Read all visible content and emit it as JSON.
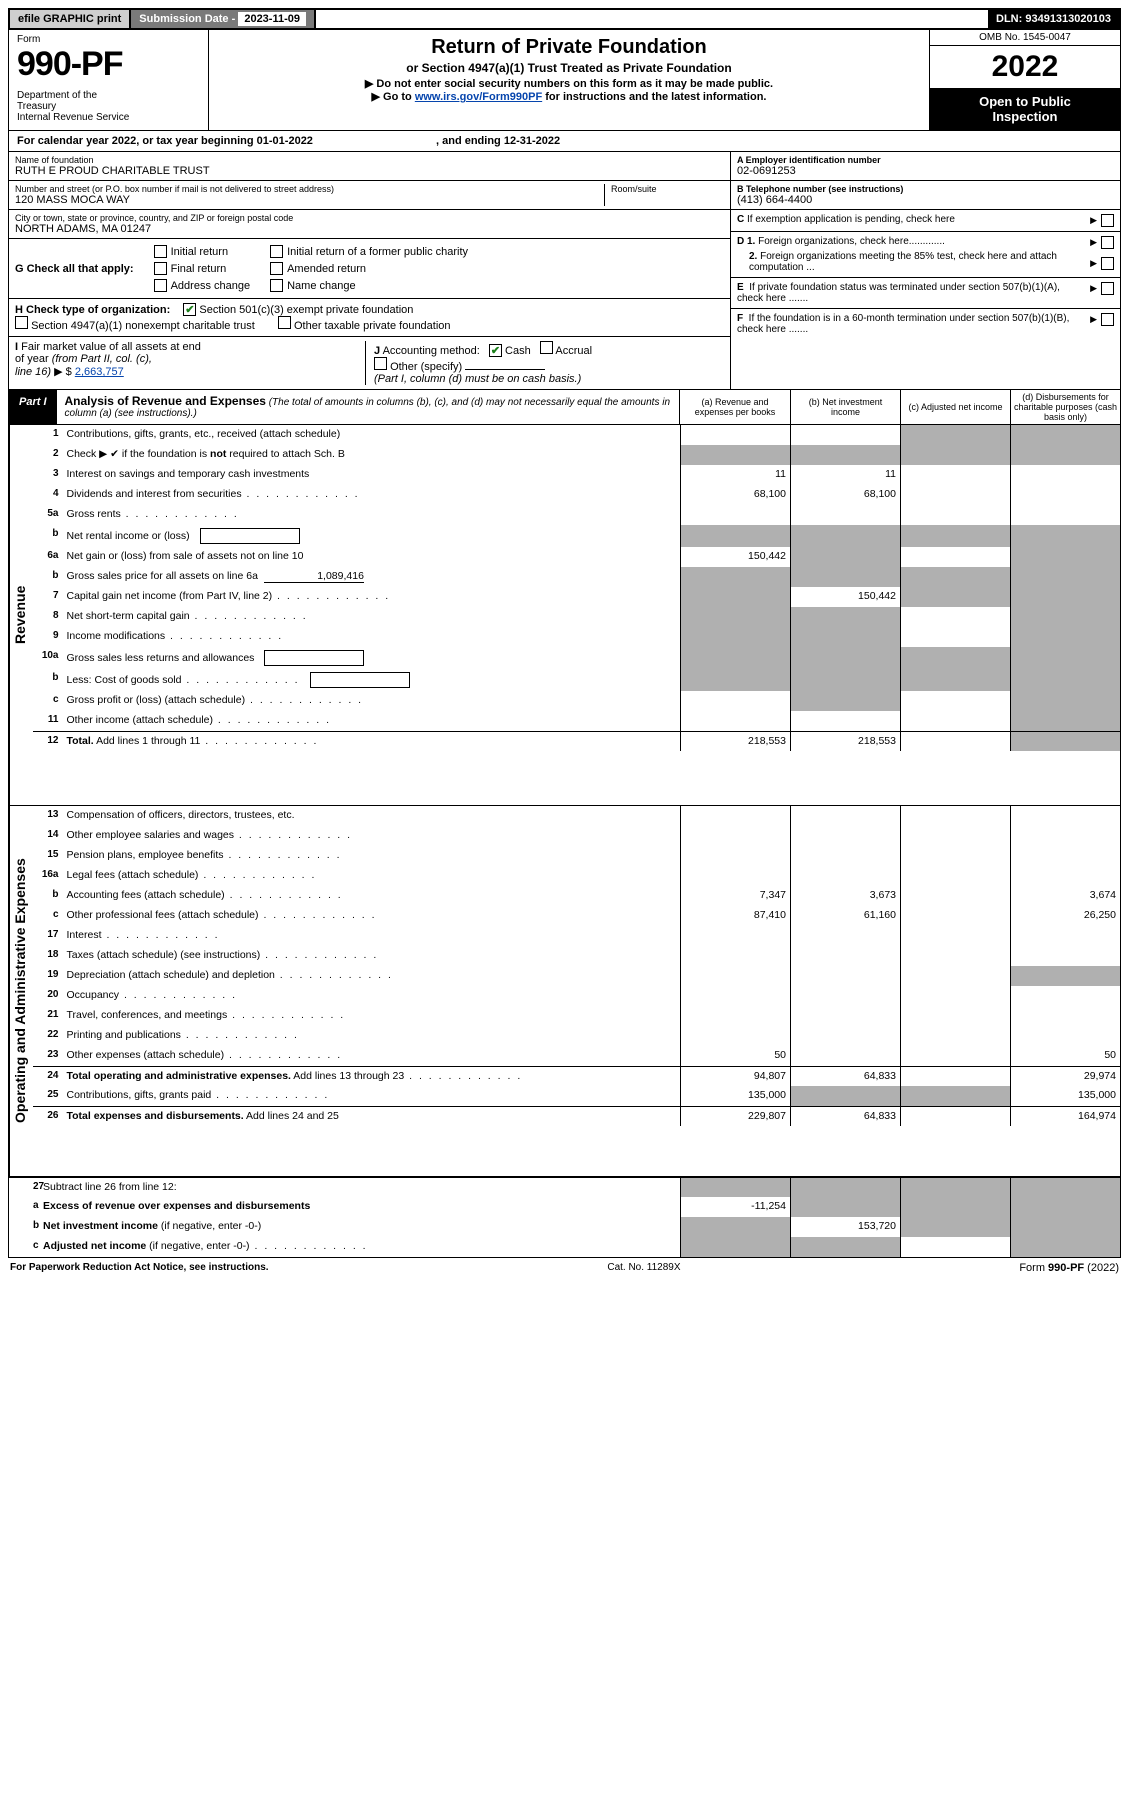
{
  "top": {
    "efile": "efile GRAPHIC print",
    "sub_label": "Submission Date - ",
    "sub_date": "2023-11-09",
    "dln_label": "DLN: ",
    "dln": "93491313020103"
  },
  "header": {
    "form_label": "Form",
    "form_num": "990-PF",
    "dept": "Department of the Treasury\nInternal Revenue Service",
    "title": "Return of Private Foundation",
    "subtitle": "or Section 4947(a)(1) Trust Treated as Private Foundation",
    "note1": "▶ Do not enter social security numbers on this form as it may be made public.",
    "note2_pre": "▶ Go to ",
    "note2_link": "www.irs.gov/Form990PF",
    "note2_post": " for instructions and the latest information.",
    "omb": "OMB No. 1545-0047",
    "year": "2022",
    "open": "Open to Public Inspection"
  },
  "cal_year": {
    "label_a": "For calendar year 2022, or tax year beginning ",
    "begin": "01-01-2022",
    "label_b": ", and ending ",
    "end": "12-31-2022"
  },
  "entity": {
    "name_lbl": "Name of foundation",
    "name": "RUTH E PROUD CHARITABLE TRUST",
    "addr_lbl": "Number and street (or P.O. box number if mail is not delivered to street address)",
    "addr": "120 MASS MOCA WAY",
    "room_lbl": "Room/suite",
    "city_lbl": "City or town, state or province, country, and ZIP or foreign postal code",
    "city": "NORTH ADAMS, MA  01247",
    "ein_lbl": "A Employer identification number",
    "ein": "02-0691253",
    "phone_lbl": "B Telephone number (see instructions)",
    "phone": "(413) 664-4400",
    "c_lbl": "C If exemption application is pending, check here",
    "d1": "D 1. Foreign organizations, check here.............",
    "d2": "2. Foreign organizations meeting the 85% test, check here and attach computation ...",
    "e": "E  If private foundation status was terminated under section 507(b)(1)(A), check here .......",
    "f": "F  If the foundation is in a 60-month termination under section 507(b)(1)(B), check here ......."
  },
  "g": {
    "label": "G Check all that apply:",
    "opts": [
      "Initial return",
      "Final return",
      "Address change",
      "Initial return of a former public charity",
      "Amended return",
      "Name change"
    ]
  },
  "h": {
    "label": "H Check type of organization:",
    "opt1": "Section 501(c)(3) exempt private foundation",
    "opt2": "Section 4947(a)(1) nonexempt charitable trust",
    "opt3": "Other taxable private foundation"
  },
  "ij": {
    "i_label": "I Fair market value of all assets at end of year (from Part II, col. (c), line 16) ▶ $",
    "i_val": "2,663,757",
    "j_label": "J Accounting method:",
    "j_cash": "Cash",
    "j_accrual": "Accrual",
    "j_other": "Other (specify)",
    "j_note": "(Part I, column (d) must be on cash basis.)"
  },
  "part1": {
    "tag": "Part I",
    "title": "Analysis of Revenue and Expenses",
    "note": " (The total of amounts in columns (b), (c), and (d) may not necessarily equal the amounts in column (a) (see instructions).)",
    "cols": {
      "a": "(a)   Revenue and expenses per books",
      "b": "(b)   Net investment income",
      "c": "(c)   Adjusted net income",
      "d": "(d)   Disbursements for charitable purposes (cash basis only)"
    }
  },
  "rev_label": "Revenue",
  "exp_label": "Operating and Administrative Expenses",
  "lines": [
    {
      "n": "1",
      "d": "Contributions, gifts, grants, etc., received (attach schedule)",
      "a": "",
      "b": "",
      "c_sh": true,
      "d_sh": true
    },
    {
      "n": "2",
      "d": "Check ▶ ✔ if the foundation is <b>not</b> required to attach Sch. B",
      "row_only": true
    },
    {
      "n": "3",
      "d": "Interest on savings and temporary cash investments",
      "a": "11",
      "b": "11"
    },
    {
      "n": "4",
      "d": "Dividends and interest from securities",
      "a": "68,100",
      "b": "68,100",
      "dots": true
    },
    {
      "n": "5a",
      "d": "Gross rents",
      "dots": true
    },
    {
      "n": "b",
      "d": "Net rental income or (loss)",
      "sub_box": true,
      "a_sh": true,
      "b_sh": true,
      "c_sh": true,
      "d_sh": true
    },
    {
      "n": "6a",
      "d": "Net gain or (loss) from sale of assets not on line 10",
      "a": "150,442",
      "b_sh": true,
      "d_sh": true
    },
    {
      "n": "b",
      "d": "Gross sales price for all assets on line 6a",
      "sub_val": "1,089,416",
      "a_sh": true,
      "b_sh": true,
      "c_sh": true,
      "d_sh": true
    },
    {
      "n": "7",
      "d": "Capital gain net income (from Part IV, line 2)",
      "a_sh": true,
      "b": "150,442",
      "c_sh": true,
      "d_sh": true,
      "dots": true
    },
    {
      "n": "8",
      "d": "Net short-term capital gain",
      "a_sh": true,
      "b_sh": true,
      "d_sh": true,
      "dots": true
    },
    {
      "n": "9",
      "d": "Income modifications",
      "a_sh": true,
      "b_sh": true,
      "d_sh": true,
      "dots": true
    },
    {
      "n": "10a",
      "d": "Gross sales less returns and allowances",
      "sub_box": true,
      "a_sh": true,
      "b_sh": true,
      "c_sh": true,
      "d_sh": true
    },
    {
      "n": "b",
      "d": "Less: Cost of goods sold",
      "sub_box": true,
      "a_sh": true,
      "b_sh": true,
      "c_sh": true,
      "d_sh": true,
      "dots": true
    },
    {
      "n": "c",
      "d": "Gross profit or (loss) (attach schedule)",
      "b_sh": true,
      "d_sh": true,
      "dots": true
    },
    {
      "n": "11",
      "d": "Other income (attach schedule)",
      "d_sh": true,
      "dots": true
    },
    {
      "n": "12",
      "d": "<b>Total.</b> Add lines 1 through 11",
      "a": "218,553",
      "b": "218,553",
      "d_sh": true,
      "dots": true,
      "hr": true
    }
  ],
  "exp_lines": [
    {
      "n": "13",
      "d": "Compensation of officers, directors, trustees, etc."
    },
    {
      "n": "14",
      "d": "Other employee salaries and wages",
      "dots": true
    },
    {
      "n": "15",
      "d": "Pension plans, employee benefits",
      "dots": true
    },
    {
      "n": "16a",
      "d": "Legal fees (attach schedule)",
      "dots": true
    },
    {
      "n": "b",
      "d": "Accounting fees (attach schedule)",
      "a": "7,347",
      "b": "3,673",
      "dv": "3,674",
      "dots": true
    },
    {
      "n": "c",
      "d": "Other professional fees (attach schedule)",
      "a": "87,410",
      "b": "61,160",
      "dv": "26,250",
      "dots": true
    },
    {
      "n": "17",
      "d": "Interest",
      "dots": true
    },
    {
      "n": "18",
      "d": "Taxes (attach schedule) (see instructions)",
      "dots": true
    },
    {
      "n": "19",
      "d": "Depreciation (attach schedule) and depletion",
      "d_sh": true,
      "dots": true
    },
    {
      "n": "20",
      "d": "Occupancy",
      "dots": true
    },
    {
      "n": "21",
      "d": "Travel, conferences, and meetings",
      "dots": true
    },
    {
      "n": "22",
      "d": "Printing and publications",
      "dots": true
    },
    {
      "n": "23",
      "d": "Other expenses (attach schedule)",
      "a": "50",
      "dv": "50",
      "dots": true
    },
    {
      "n": "24",
      "d": "<b>Total operating and administrative expenses.</b> Add lines 13 through 23",
      "a": "94,807",
      "b": "64,833",
      "dv": "29,974",
      "dots": true,
      "hr": true
    },
    {
      "n": "25",
      "d": "Contributions, gifts, grants paid",
      "a": "135,000",
      "b_sh": true,
      "c_sh": true,
      "dv": "135,000",
      "dots": true
    },
    {
      "n": "26",
      "d": "<b>Total expenses and disbursements.</b> Add lines 24 and 25",
      "a": "229,807",
      "b": "64,833",
      "dv": "164,974",
      "hr": true
    }
  ],
  "net_lines": [
    {
      "n": "27",
      "d": "Subtract line 26 from line 12:",
      "a_sh": true,
      "b_sh": true,
      "c_sh": true,
      "d_sh": true,
      "hr": true
    },
    {
      "n": "a",
      "d": "<b>Excess of revenue over expenses and disbursements</b>",
      "a": "-11,254",
      "b_sh": true,
      "c_sh": true,
      "d_sh": true
    },
    {
      "n": "b",
      "d": "<b>Net investment income</b> (if negative, enter -0-)",
      "a_sh": true,
      "b": "153,720",
      "c_sh": true,
      "d_sh": true
    },
    {
      "n": "c",
      "d": "<b>Adjusted net income</b> (if negative, enter -0-)",
      "a_sh": true,
      "b_sh": true,
      "d_sh": true,
      "dots": true
    }
  ],
  "footer": {
    "left": "For Paperwork Reduction Act Notice, see instructions.",
    "mid": "Cat. No. 11289X",
    "right": "Form 990-PF (2022)"
  }
}
